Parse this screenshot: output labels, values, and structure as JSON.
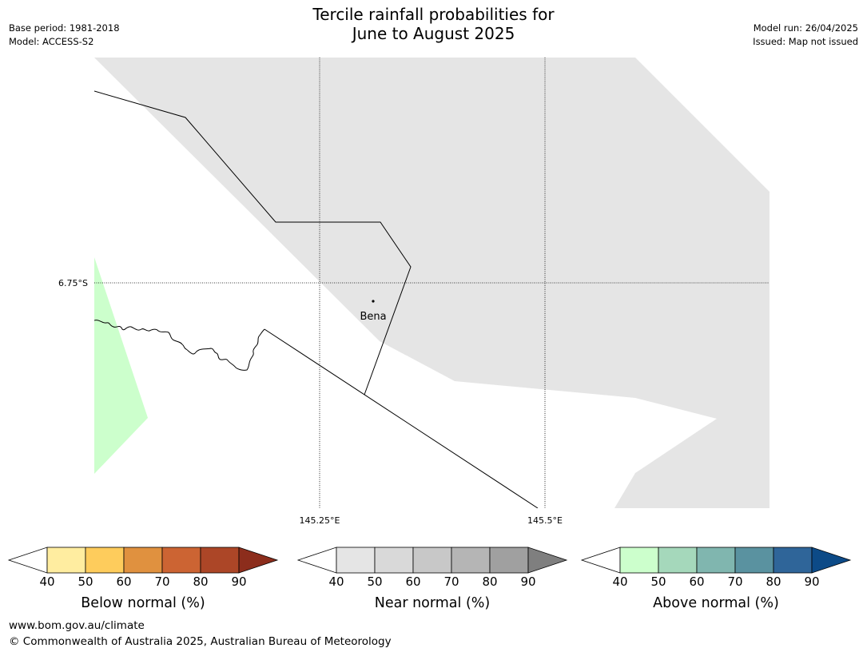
{
  "title": {
    "line1": "Tercile rainfall probabilities for",
    "line2": "June to August 2025"
  },
  "meta_left": {
    "base_period": "Base period: 1981-2018",
    "model": "Model: ACCESS-S2"
  },
  "meta_right": {
    "model_run": "Model run: 26/04/2025",
    "issued": "Issued: Map not issued"
  },
  "map": {
    "lat_labels": [
      "6.75°S"
    ],
    "lon_labels": [
      "145.25°E",
      "145.5°E"
    ],
    "place": "Bena",
    "colors": {
      "near_normal_fill": "#e5e5e5",
      "above_normal_fill": "#ccffcc",
      "border": "#000000"
    }
  },
  "legends": [
    {
      "id": "below",
      "label": "Below normal (%)",
      "ticks": [
        "40",
        "50",
        "60",
        "70",
        "80",
        "90"
      ],
      "colors": [
        "#ffeda0",
        "#fecc5c",
        "#e0913f",
        "#cc6433",
        "#ac4627",
        "#8c2d1c"
      ]
    },
    {
      "id": "near",
      "label": "Near normal (%)",
      "ticks": [
        "40",
        "50",
        "60",
        "70",
        "80",
        "90"
      ],
      "colors": [
        "#e5e5e5",
        "#d9d9d9",
        "#c8c8c8",
        "#b5b5b5",
        "#a0a0a0",
        "#7f7f7f"
      ]
    },
    {
      "id": "above",
      "label": "Above normal (%)",
      "ticks": [
        "40",
        "50",
        "60",
        "70",
        "80",
        "90"
      ],
      "colors": [
        "#ccffcc",
        "#a5d8bb",
        "#80b6af",
        "#5a92a0",
        "#2f6599",
        "#0c4a87"
      ]
    }
  ],
  "footer": {
    "url": "www.bom.gov.au/climate",
    "copyright": "© Commonwealth of Australia 2025, Australian Bureau of Meteorology"
  }
}
